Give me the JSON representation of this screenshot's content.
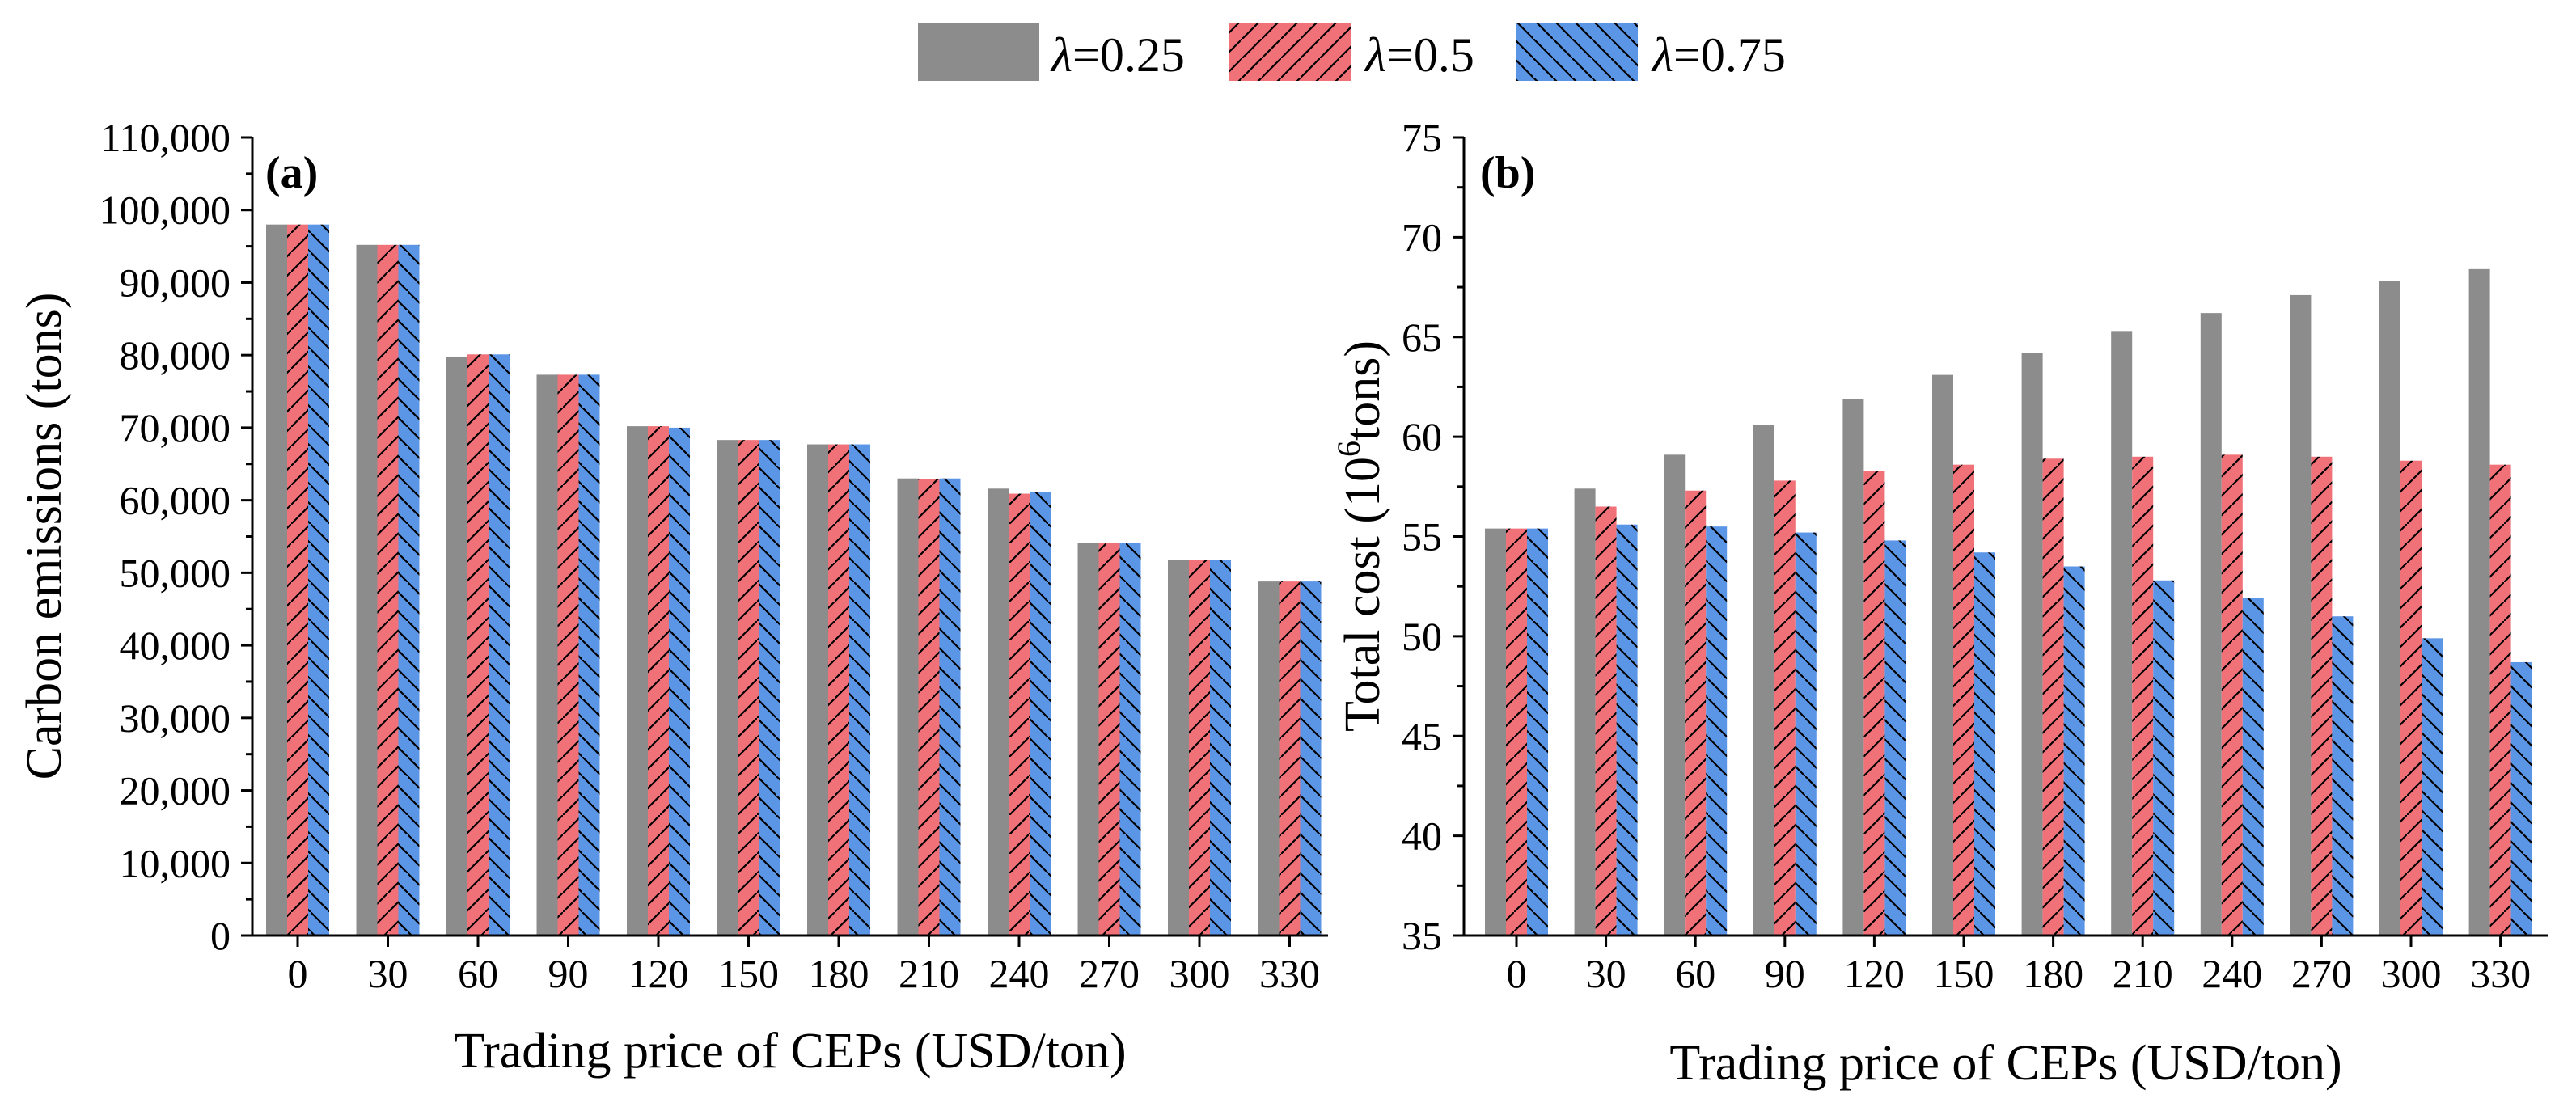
{
  "legend": {
    "items": [
      {
        "prefix": "λ",
        "text": "=0.25"
      },
      {
        "prefix": "λ",
        "text": "=0.5"
      },
      {
        "prefix": "λ",
        "text": "=0.75"
      }
    ]
  },
  "colors": {
    "series": [
      "#8c8c8c",
      "#f07178",
      "#5b95e6"
    ],
    "axis": "#000000"
  },
  "chart_data": [
    {
      "type": "bar",
      "panel_label": "(a)",
      "xlabel": "Trading price of CEPs (USD/ton)",
      "ylabel": "Carbon emissions (tons)",
      "categories": [
        "0",
        "30",
        "60",
        "90",
        "120",
        "150",
        "180",
        "210",
        "240",
        "270",
        "300",
        "330"
      ],
      "ylim": [
        0,
        110000
      ],
      "yticks": [
        0,
        10000,
        20000,
        30000,
        40000,
        50000,
        60000,
        70000,
        80000,
        90000,
        100000,
        110000
      ],
      "ytick_labels": [
        "0",
        "10,000",
        "20,000",
        "30,000",
        "40,000",
        "50,000",
        "60,000",
        "70,000",
        "80,000",
        "90,000",
        "100,000",
        "110,000"
      ],
      "series": [
        {
          "name": "λ=0.25",
          "pattern": "solid",
          "values": [
            98000,
            95200,
            79800,
            77300,
            70200,
            68300,
            67700,
            63000,
            61600,
            54100,
            51800,
            48800
          ]
        },
        {
          "name": "λ=0.5",
          "pattern": "slash",
          "values": [
            98000,
            95200,
            80100,
            77300,
            70200,
            68300,
            67700,
            62900,
            60900,
            54100,
            51800,
            48800
          ]
        },
        {
          "name": "λ=0.75",
          "pattern": "backslash",
          "values": [
            98000,
            95200,
            80100,
            77300,
            70000,
            68300,
            67700,
            63000,
            61100,
            54100,
            51800,
            48800
          ]
        }
      ]
    },
    {
      "type": "bar",
      "panel_label": "(b)",
      "xlabel": "Trading price of CEPs (USD/ton)",
      "ylabel_main": "Total cost (10",
      "ylabel_sup": "6",
      "ylabel_tail": "tons)",
      "categories": [
        "0",
        "30",
        "60",
        "90",
        "120",
        "150",
        "180",
        "210",
        "240",
        "270",
        "300",
        "330"
      ],
      "ylim": [
        35,
        75
      ],
      "yticks": [
        35,
        40,
        45,
        50,
        55,
        60,
        65,
        70,
        75
      ],
      "ytick_labels": [
        "35",
        "40",
        "45",
        "50",
        "55",
        "60",
        "65",
        "70",
        "75"
      ],
      "series": [
        {
          "name": "λ=0.25",
          "pattern": "solid",
          "values": [
            55.4,
            57.4,
            59.1,
            60.6,
            61.9,
            63.1,
            64.2,
            65.3,
            66.2,
            67.1,
            67.8,
            68.4
          ]
        },
        {
          "name": "λ=0.5",
          "pattern": "slash",
          "values": [
            55.4,
            56.5,
            57.3,
            57.8,
            58.3,
            58.6,
            58.9,
            59.0,
            59.1,
            59.0,
            58.8,
            58.6
          ]
        },
        {
          "name": "λ=0.75",
          "pattern": "backslash",
          "values": [
            55.4,
            55.6,
            55.5,
            55.2,
            54.8,
            54.2,
            53.5,
            52.8,
            51.9,
            51.0,
            49.9,
            48.7
          ]
        }
      ]
    }
  ]
}
